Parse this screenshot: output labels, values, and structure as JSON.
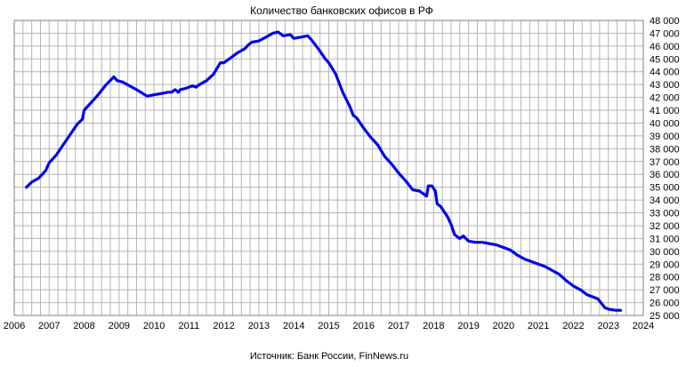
{
  "chart_data": {
    "type": "line",
    "title": "Количество банковских офисов в РФ",
    "source": "Источник: Банк России, FinNews.ru",
    "xlabel": "",
    "ylabel": "",
    "xlim": [
      2006,
      2024
    ],
    "ylim": [
      25000,
      48000
    ],
    "grid": true,
    "x_ticks": [
      "2006",
      "2007",
      "2008",
      "2009",
      "2010",
      "2011",
      "2012",
      "2013",
      "2014",
      "2015",
      "2016",
      "2017",
      "2018",
      "2019",
      "2020",
      "2021",
      "2022",
      "2023",
      "2024"
    ],
    "y_ticks": [
      "25 000",
      "26 000",
      "27 000",
      "28 000",
      "29 000",
      "30 000",
      "31 000",
      "32 000",
      "33 000",
      "34 000",
      "35 000",
      "36 000",
      "37 000",
      "38 000",
      "39 000",
      "40 000",
      "41 000",
      "42 000",
      "43 000",
      "44 000",
      "45 000",
      "46 000",
      "47 000",
      "48 000"
    ],
    "series_color": "#0000ee",
    "series": [
      {
        "name": "",
        "x": [
          2006.35,
          2006.5,
          2006.7,
          2006.9,
          2007.0,
          2007.2,
          2007.4,
          2007.6,
          2007.8,
          2007.95,
          2008.0,
          2008.2,
          2008.4,
          2008.6,
          2008.85,
          2008.95,
          2009.1,
          2009.3,
          2009.5,
          2009.8,
          2010.0,
          2010.2,
          2010.4,
          2010.5,
          2010.6,
          2010.7,
          2010.75,
          2010.9,
          2011.1,
          2011.2,
          2011.3,
          2011.5,
          2011.7,
          2011.9,
          2012.0,
          2012.2,
          2012.4,
          2012.6,
          2012.7,
          2012.8,
          2013.0,
          2013.2,
          2013.4,
          2013.55,
          2013.7,
          2013.9,
          2014.0,
          2014.2,
          2014.4,
          2014.5,
          2014.7,
          2014.9,
          2015.0,
          2015.2,
          2015.4,
          2015.6,
          2015.7,
          2015.8,
          2016.0,
          2016.2,
          2016.4,
          2016.6,
          2016.8,
          2017.0,
          2017.2,
          2017.4,
          2017.6,
          2017.8,
          2017.85,
          2017.95,
          2018.05,
          2018.1,
          2018.2,
          2018.4,
          2018.5,
          2018.6,
          2018.75,
          2018.85,
          2019.0,
          2019.2,
          2019.4,
          2019.6,
          2019.8,
          2020.0,
          2020.2,
          2020.4,
          2020.6,
          2020.8,
          2021.0,
          2021.2,
          2021.4,
          2021.6,
          2021.8,
          2022.0,
          2022.2,
          2022.4,
          2022.6,
          2022.7,
          2022.9,
          2023.0,
          2023.2,
          2023.35
        ],
        "y": [
          35000,
          35400,
          35700,
          36300,
          36900,
          37500,
          38300,
          39100,
          39900,
          40300,
          41000,
          41600,
          42200,
          42900,
          43600,
          43300,
          43200,
          42900,
          42600,
          42100,
          42200,
          42300,
          42400,
          42400,
          42600,
          42400,
          42600,
          42700,
          42900,
          42800,
          43000,
          43300,
          43800,
          44700,
          44700,
          45100,
          45500,
          45800,
          46100,
          46300,
          46400,
          46700,
          47000,
          47100,
          46800,
          46900,
          46600,
          46700,
          46800,
          46500,
          45800,
          45000,
          44700,
          43800,
          42400,
          41300,
          40600,
          40400,
          39600,
          38900,
          38300,
          37400,
          36800,
          36100,
          35500,
          34800,
          34700,
          34300,
          35100,
          35100,
          34700,
          33700,
          33500,
          32700,
          32100,
          31300,
          31000,
          31200,
          30800,
          30700,
          30700,
          30600,
          30500,
          30300,
          30100,
          29700,
          29400,
          29200,
          29000,
          28800,
          28500,
          28200,
          27700,
          27300,
          27000,
          26600,
          26400,
          26300,
          25600,
          25500,
          25400,
          25400
        ]
      }
    ]
  }
}
